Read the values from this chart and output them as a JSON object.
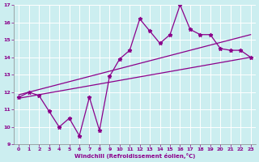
{
  "xlabel": "Windchill (Refroidissement éolien,°C)",
  "xlim": [
    -0.5,
    23.5
  ],
  "ylim": [
    9,
    17
  ],
  "yticks": [
    9,
    10,
    11,
    12,
    13,
    14,
    15,
    16,
    17
  ],
  "xticks": [
    0,
    1,
    2,
    3,
    4,
    5,
    6,
    7,
    8,
    9,
    10,
    11,
    12,
    13,
    14,
    15,
    16,
    17,
    18,
    19,
    20,
    21,
    22,
    23
  ],
  "bg_color": "#cceef0",
  "grid_color": "#ffffff",
  "line_color": "#8b008b",
  "main_line_x": [
    0,
    1,
    2,
    3,
    4,
    5,
    6,
    7,
    8,
    9,
    10,
    11,
    12,
    13,
    14,
    15,
    16,
    17,
    18,
    19,
    20,
    21,
    22,
    23
  ],
  "main_line_y": [
    11.7,
    12.0,
    11.8,
    10.9,
    10.0,
    10.5,
    9.5,
    11.7,
    9.8,
    12.9,
    13.9,
    14.4,
    16.2,
    15.5,
    14.8,
    15.3,
    17.0,
    15.6,
    15.3,
    15.3,
    14.5,
    14.4,
    14.4,
    14.0
  ],
  "upper_line_x": [
    0,
    23
  ],
  "upper_line_y": [
    11.85,
    15.3
  ],
  "lower_line_x": [
    0,
    23
  ],
  "lower_line_y": [
    11.65,
    14.0
  ],
  "marker_style": "*",
  "lw": 0.9
}
